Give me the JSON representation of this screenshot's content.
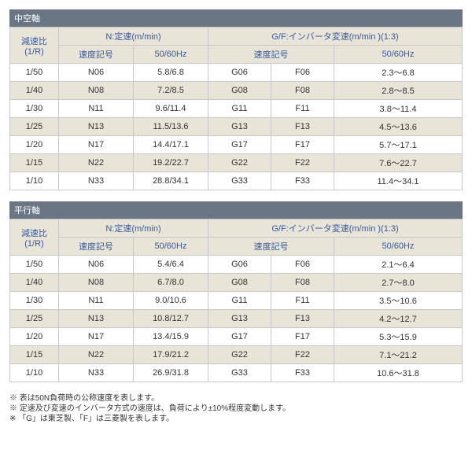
{
  "sections": [
    {
      "title": "中空軸",
      "head": {
        "ratio": "減速比\n(1/R)",
        "n_group": "N:定速(m/min)",
        "gf_group": "G/F:インバータ変速(m/min )(1:3)",
        "speed_code": "速度記号",
        "freq": "50/60Hz"
      },
      "rows": [
        {
          "ratio": "1/50",
          "n_code": "N06",
          "n_freq": "5.8/6.8",
          "g_code": "G06",
          "f_code": "F06",
          "gf_freq": "2.3～6.8"
        },
        {
          "ratio": "1/40",
          "n_code": "N08",
          "n_freq": "7.2/8.5",
          "g_code": "G08",
          "f_code": "F08",
          "gf_freq": "2.8～8.5"
        },
        {
          "ratio": "1/30",
          "n_code": "N11",
          "n_freq": "9.6/11.4",
          "g_code": "G11",
          "f_code": "F11",
          "gf_freq": "3.8～11.4"
        },
        {
          "ratio": "1/25",
          "n_code": "N13",
          "n_freq": "11.5/13.6",
          "g_code": "G13",
          "f_code": "F13",
          "gf_freq": "4.5～13.6"
        },
        {
          "ratio": "1/20",
          "n_code": "N17",
          "n_freq": "14.4/17.1",
          "g_code": "G17",
          "f_code": "F17",
          "gf_freq": "5.7～17.1"
        },
        {
          "ratio": "1/15",
          "n_code": "N22",
          "n_freq": "19.2/22.7",
          "g_code": "G22",
          "f_code": "F22",
          "gf_freq": "7.6～22.7"
        },
        {
          "ratio": "1/10",
          "n_code": "N33",
          "n_freq": "28.8/34.1",
          "g_code": "G33",
          "f_code": "F33",
          "gf_freq": "11.4～34.1"
        }
      ]
    },
    {
      "title": "平行軸",
      "head": {
        "ratio": "減速比\n(1/R)",
        "n_group": "N:定速(m/min)",
        "gf_group": "G/F:インバータ変速(m/min )(1:3)",
        "speed_code": "速度記号",
        "freq": "50/60Hz"
      },
      "rows": [
        {
          "ratio": "1/50",
          "n_code": "N06",
          "n_freq": "5.4/6.4",
          "g_code": "G06",
          "f_code": "F06",
          "gf_freq": "2.1～6.4"
        },
        {
          "ratio": "1/40",
          "n_code": "N08",
          "n_freq": "6.7/8.0",
          "g_code": "G08",
          "f_code": "F08",
          "gf_freq": "2.7～8.0"
        },
        {
          "ratio": "1/30",
          "n_code": "N11",
          "n_freq": "9.0/10.6",
          "g_code": "G11",
          "f_code": "F11",
          "gf_freq": "3.5～10.6"
        },
        {
          "ratio": "1/25",
          "n_code": "N13",
          "n_freq": "10.8/12.7",
          "g_code": "G13",
          "f_code": "F13",
          "gf_freq": "4.2～12.7"
        },
        {
          "ratio": "1/20",
          "n_code": "N17",
          "n_freq": "13.4/15.9",
          "g_code": "G17",
          "f_code": "F17",
          "gf_freq": "5.3～15.9"
        },
        {
          "ratio": "1/15",
          "n_code": "N22",
          "n_freq": "17.9/21.2",
          "g_code": "G22",
          "f_code": "F22",
          "gf_freq": "7.1～21.2"
        },
        {
          "ratio": "1/10",
          "n_code": "N33",
          "n_freq": "26.9/31.8",
          "g_code": "G33",
          "f_code": "F33",
          "gf_freq": "10.6～31.8"
        }
      ]
    }
  ],
  "notes": [
    "※ 表は50N負荷時の公称速度を表します。",
    "※ 定速及び変速のインバータ方式の速度は、負荷により±10%程度変動します。",
    "※ 「G」は東芝製、「F」は三菱製を表します。"
  ]
}
